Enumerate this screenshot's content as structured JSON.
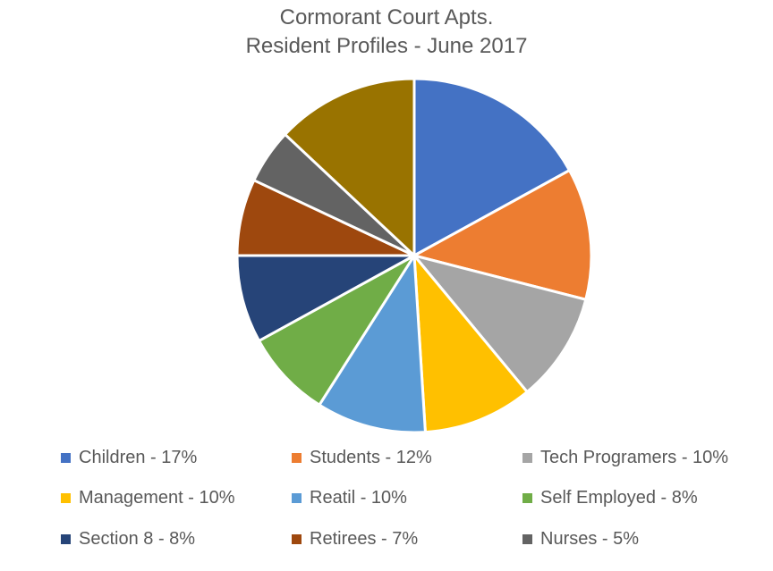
{
  "chart_data": {
    "type": "pie",
    "title": "Cormorant Court Apts.",
    "subtitle": "Resident Profiles - June 2017",
    "legend_position": "bottom",
    "start_angle_deg": 0,
    "direction": "clockwise",
    "slices": [
      {
        "label": "Children - 17%",
        "value": 17,
        "color": "#4472C4"
      },
      {
        "label": "Students - 12%",
        "value": 12,
        "color": "#ED7D31"
      },
      {
        "label": "Tech Programers - 10%",
        "value": 10,
        "color": "#A5A5A5"
      },
      {
        "label": "Management - 10%",
        "value": 10,
        "color": "#FFC000"
      },
      {
        "label": "Reatil - 10%",
        "value": 10,
        "color": "#5B9BD5"
      },
      {
        "label": "Self Employed - 8%",
        "value": 8,
        "color": "#70AD47"
      },
      {
        "label": "Section 8 - 8%",
        "value": 8,
        "color": "#264478"
      },
      {
        "label": "Retirees - 7%",
        "value": 7,
        "color": "#9E480E"
      },
      {
        "label": "Nurses - 5%",
        "value": 5,
        "color": "#636363"
      },
      {
        "label": "",
        "value": 13,
        "color": "#997300"
      }
    ]
  }
}
